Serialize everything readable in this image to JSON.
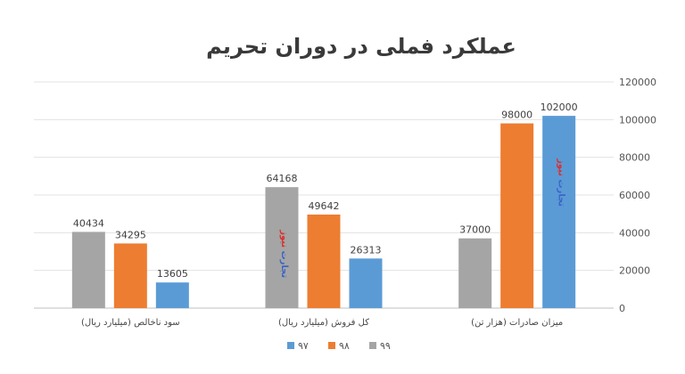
{
  "chart_data": {
    "type": "bar",
    "title": "عملکرد فملی در دوران تحریم",
    "categories": [
      "سود ناخالص (میلیارد ریال)",
      "کل فروش (میلیارد ریال)",
      "میزان صادرات (هزار تن)"
    ],
    "series": [
      {
        "name": "۹۹",
        "color": "#a5a5a5",
        "values": [
          40434,
          64168,
          37000
        ]
      },
      {
        "name": "۹۸",
        "color": "#ed7d31",
        "values": [
          34295,
          49642,
          98000
        ]
      },
      {
        "name": "۹۷",
        "color": "#5b9bd5",
        "values": [
          13605,
          26313,
          102000
        ]
      }
    ],
    "yticks": [
      0,
      20000,
      40000,
      60000,
      80000,
      100000,
      120000
    ],
    "ylim": [
      0,
      120000
    ],
    "y_axis_side": "right",
    "grid": true,
    "legend_placement": "bottom",
    "legend_order": [
      "۹۷",
      "۹۸",
      "۹۹"
    ],
    "watermark": {
      "part1": "تجارت",
      "part2": "نیوز"
    }
  }
}
